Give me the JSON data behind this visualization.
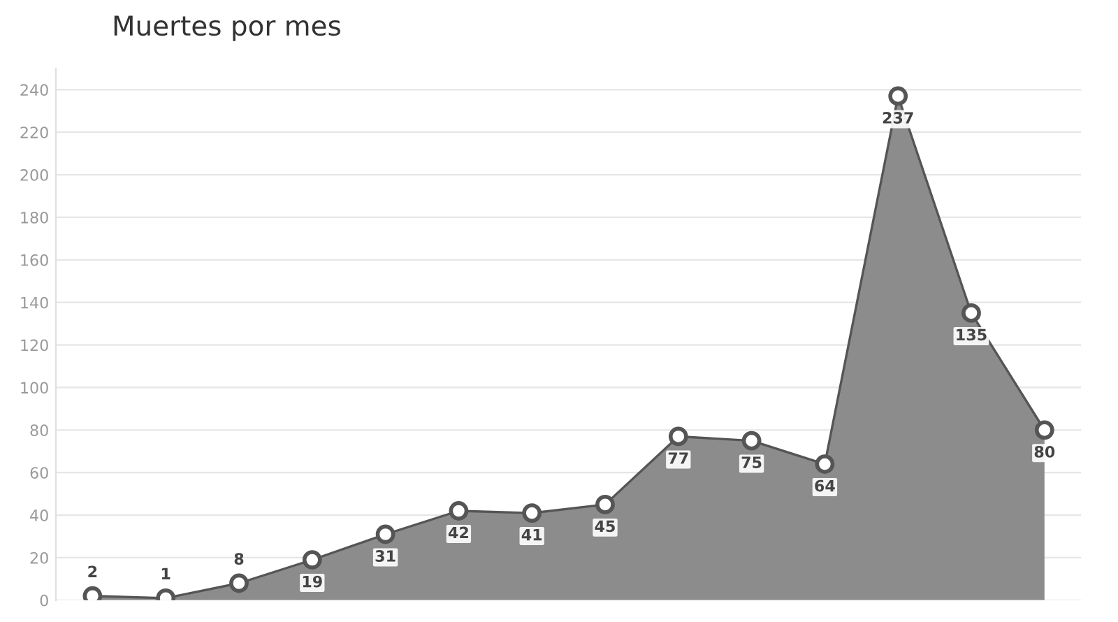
{
  "chart_data": {
    "type": "area",
    "title": "Muertes por mes",
    "categories": [
      null,
      null,
      null,
      null,
      null,
      null,
      null,
      null,
      null,
      null,
      null,
      null,
      null,
      null
    ],
    "series": [
      {
        "color": "#8c8c8c",
        "values": [
          2,
          1,
          8,
          19,
          31,
          42,
          41,
          45,
          77,
          75,
          64,
          237,
          135,
          80
        ]
      }
    ],
    "ylim": [
      0,
      250
    ],
    "yticks": [
      0,
      20,
      40,
      60,
      80,
      100,
      120,
      140,
      160,
      180,
      200,
      220,
      240
    ],
    "grid": "y",
    "marker": "circle",
    "data_labels": true
  }
}
